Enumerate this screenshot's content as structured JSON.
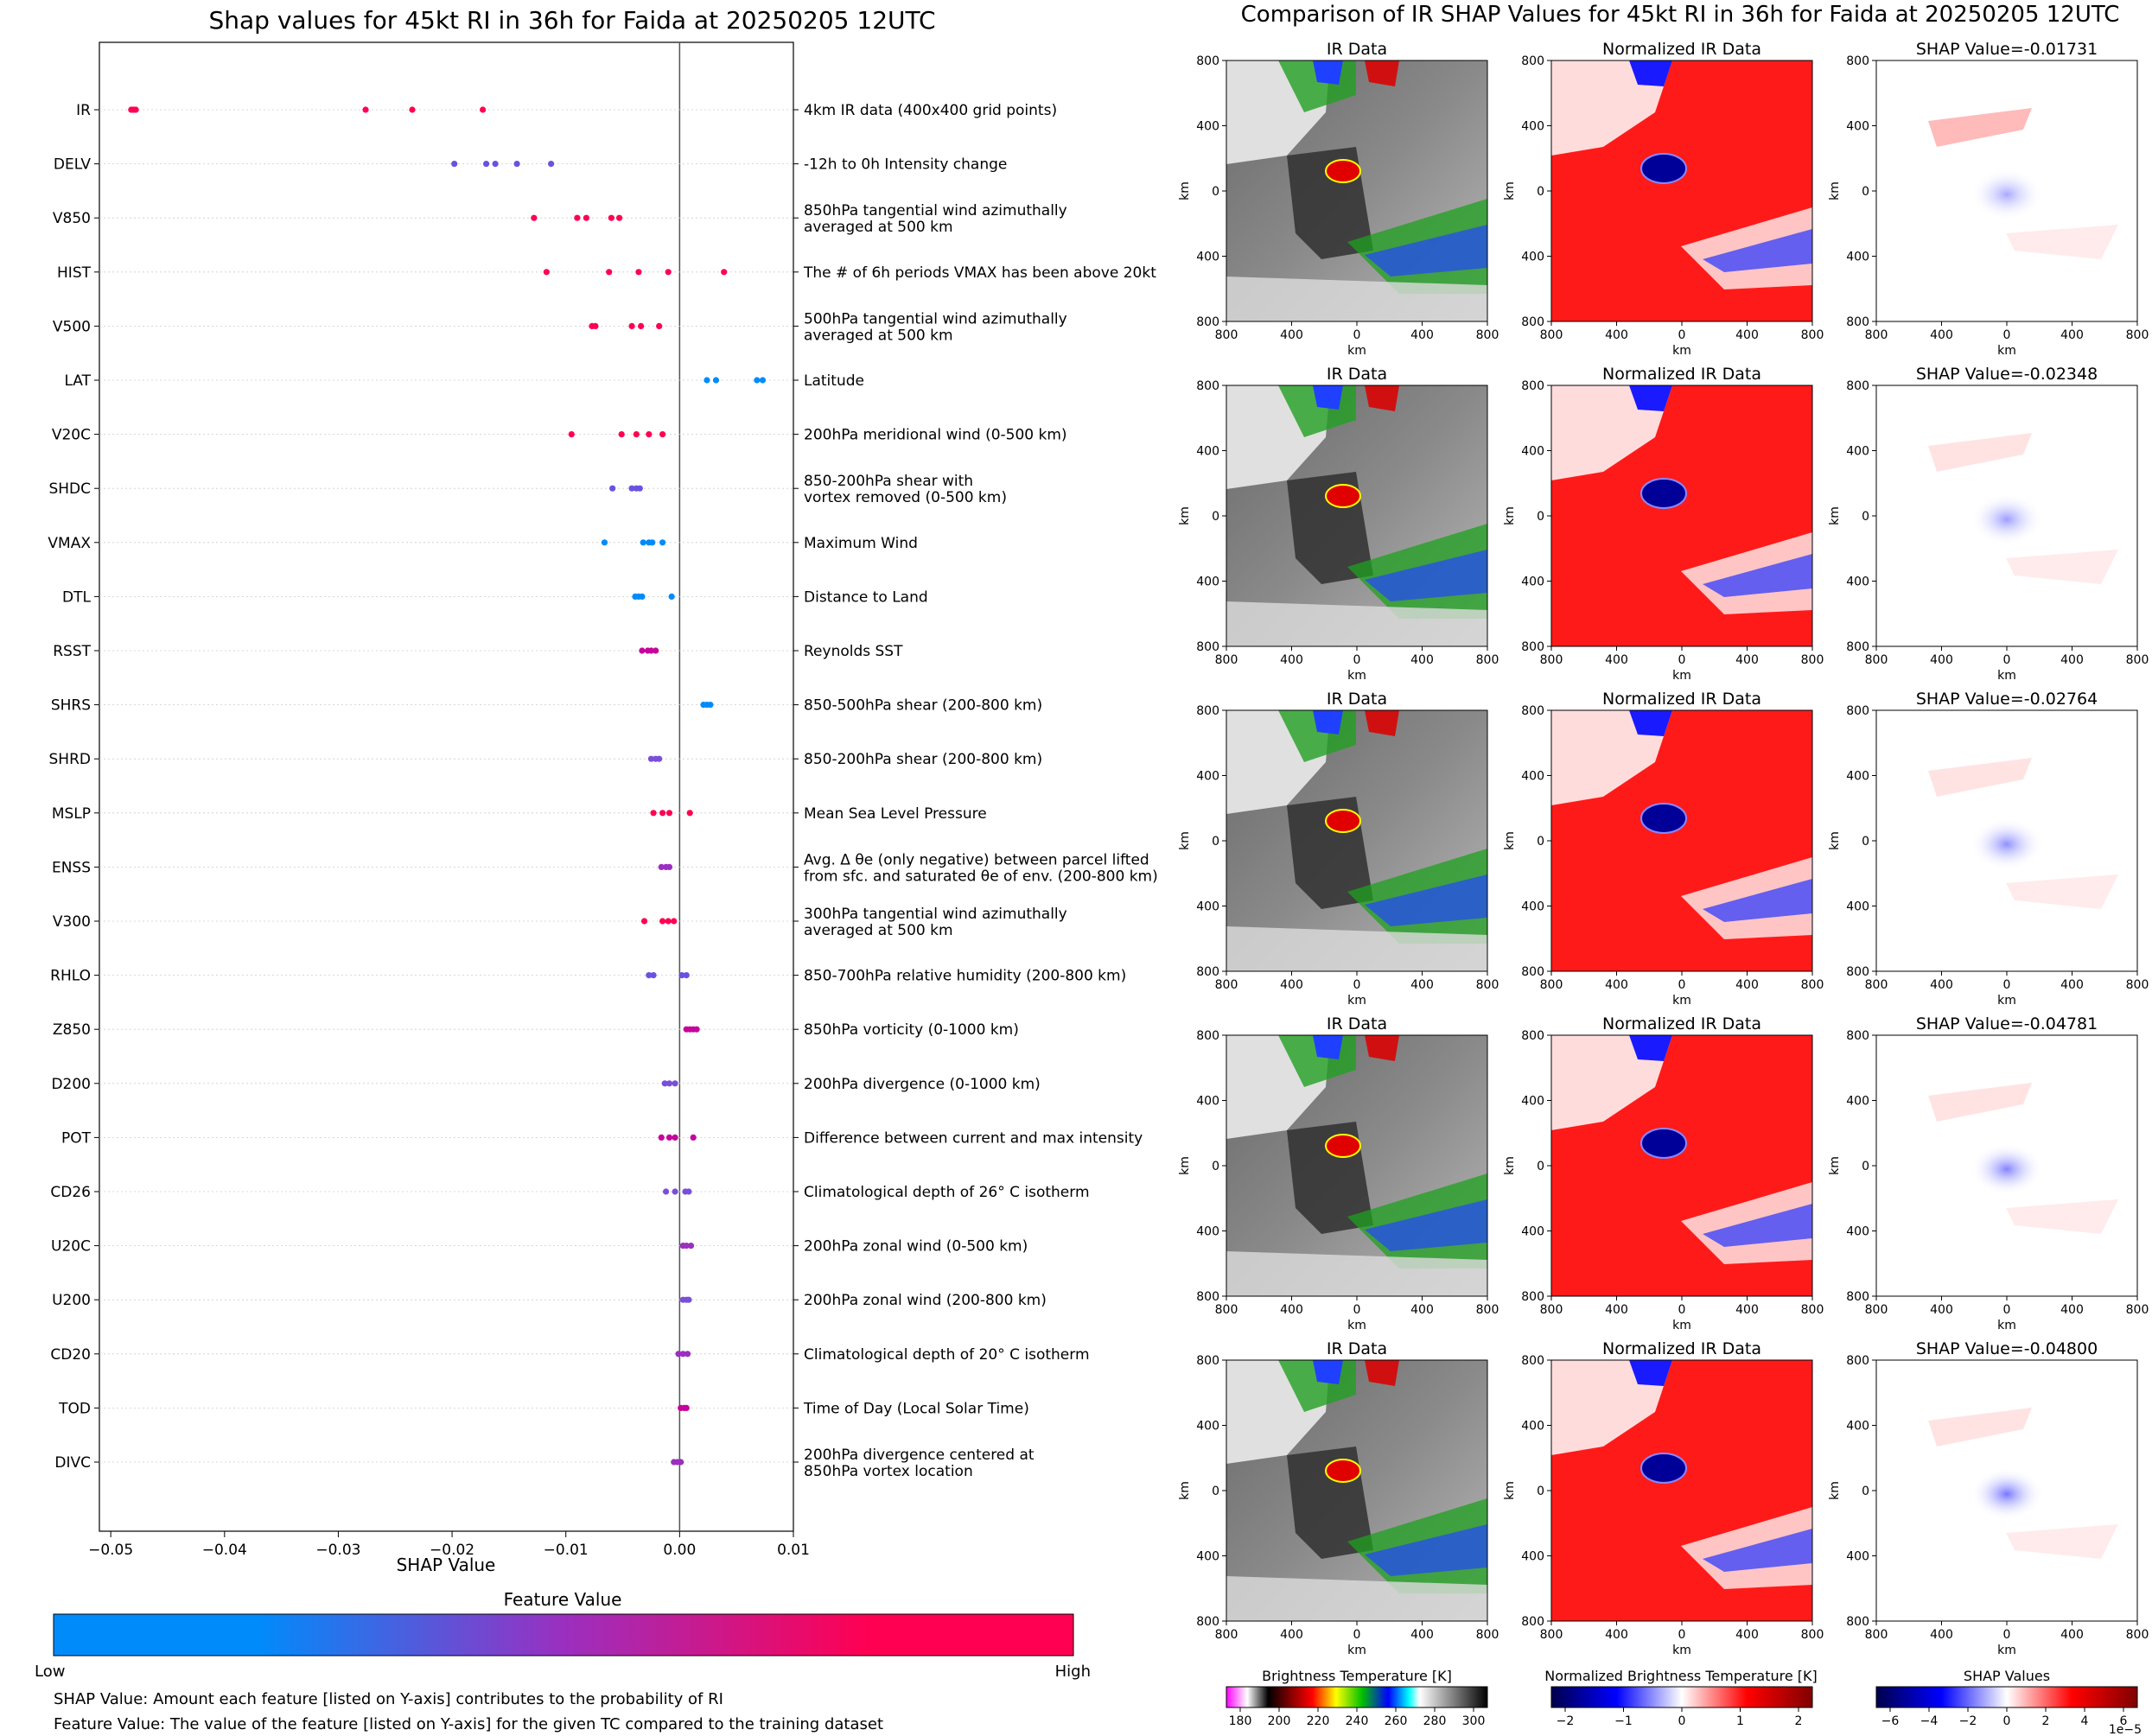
{
  "left_panel": {
    "title": "Shap values for 45kt RI in 36h for Faida at 20250205 12UTC",
    "xlabel": "SHAP Value",
    "colorbar": {
      "title": "Feature Value",
      "low": "Low",
      "high": "High",
      "low_color": "#008bfb",
      "high_color": "#ff0052"
    },
    "footnote_1": "SHAP Value: Amount each feature [listed on Y-axis] contributes to the probability of RI",
    "footnote_2": "Feature Value: The value of the feature [listed on Y-axis] for the given TC compared to the training dataset"
  },
  "chart_data": [
    {
      "type": "scatter",
      "xlabel": "SHAP Value",
      "xlim": [
        -0.051,
        0.01
      ],
      "xticks": [
        -0.05,
        -0.04,
        -0.03,
        -0.02,
        -0.01,
        0.0,
        0.01
      ],
      "xtick_labels": [
        "−0.05",
        "−0.04",
        "−0.03",
        "−0.02",
        "−0.01",
        "0.00",
        "0.01"
      ],
      "features": [
        {
          "name": "IR",
          "desc": [
            "4km IR data (400x400 grid points)"
          ],
          "points": [
            -0.0482,
            -0.048,
            -0.0478,
            -0.0276,
            -0.0235,
            -0.0173
          ],
          "colors": [
            "#ff0052",
            "#ff0052",
            "#ff0052",
            "#ff0052",
            "#ff0052",
            "#ff0052"
          ]
        },
        {
          "name": "DELV",
          "desc": [
            "-12h to 0h Intensity change"
          ],
          "points": [
            -0.0198,
            -0.017,
            -0.0162,
            -0.0143,
            -0.0113
          ],
          "colors": [
            "#6a52e0",
            "#6a52e0",
            "#6a52e0",
            "#6a52e0",
            "#6a52e0"
          ]
        },
        {
          "name": "V850",
          "desc": [
            "850hPa tangential wind azimuthally",
            "averaged at 500 km"
          ],
          "points": [
            -0.0128,
            -0.009,
            -0.0082,
            -0.006,
            -0.0053
          ],
          "colors": [
            "#ff0052",
            "#ff0052",
            "#ff0052",
            "#ff0052",
            "#ff0052"
          ]
        },
        {
          "name": "HIST",
          "desc": [
            "The # of 6h periods VMAX has been above 20kt"
          ],
          "points": [
            -0.0117,
            -0.0062,
            -0.0036,
            -0.001,
            0.0039
          ],
          "colors": [
            "#ff0052",
            "#ff0052",
            "#ff0052",
            "#ff0052",
            "#ff0052"
          ]
        },
        {
          "name": "V500",
          "desc": [
            "500hPa tangential wind azimuthally",
            "averaged at 500 km"
          ],
          "points": [
            -0.0077,
            -0.0074,
            -0.0042,
            -0.0034,
            -0.0018
          ],
          "colors": [
            "#ff0052",
            "#ff0052",
            "#ff0052",
            "#ff0052",
            "#ff0052"
          ]
        },
        {
          "name": "LAT",
          "desc": [
            "Latitude"
          ],
          "points": [
            0.0024,
            0.0032,
            0.0068,
            0.0073
          ],
          "colors": [
            "#008bfb",
            "#008bfb",
            "#008bfb",
            "#008bfb"
          ]
        },
        {
          "name": "V20C",
          "desc": [
            "200hPa meridional wind (0-500 km)"
          ],
          "points": [
            -0.0095,
            -0.0051,
            -0.0038,
            -0.0027,
            -0.0015
          ],
          "colors": [
            "#ff0052",
            "#ff0052",
            "#ff0052",
            "#ff0052",
            "#ff0052"
          ]
        },
        {
          "name": "SHDC",
          "desc": [
            "850-200hPa shear with",
            "vortex removed (0-500 km)"
          ],
          "points": [
            -0.0059,
            -0.0042,
            -0.0038,
            -0.0035
          ],
          "colors": [
            "#6a52e0",
            "#6a52e0",
            "#6a52e0",
            "#6a52e0"
          ]
        },
        {
          "name": "VMAX",
          "desc": [
            "Maximum Wind"
          ],
          "points": [
            -0.0066,
            -0.0032,
            -0.0027,
            -0.0024,
            -0.0015
          ],
          "colors": [
            "#008bfb",
            "#008bfb",
            "#008bfb",
            "#008bfb",
            "#008bfb"
          ]
        },
        {
          "name": "DTL",
          "desc": [
            "Distance to Land"
          ],
          "points": [
            -0.0039,
            -0.0036,
            -0.0033,
            -0.0007
          ],
          "colors": [
            "#008bfb",
            "#008bfb",
            "#008bfb",
            "#008bfb"
          ]
        },
        {
          "name": "RSST",
          "desc": [
            "Reynolds SST"
          ],
          "points": [
            -0.0033,
            -0.0028,
            -0.0025,
            -0.0021
          ],
          "colors": [
            "#c6049b",
            "#c6049b",
            "#c6049b",
            "#c6049b"
          ]
        },
        {
          "name": "SHRS",
          "desc": [
            "850-500hPa shear (200-800 km)"
          ],
          "points": [
            0.0021,
            0.0024,
            0.0027
          ],
          "colors": [
            "#008bfb",
            "#008bfb",
            "#008bfb"
          ]
        },
        {
          "name": "SHRD",
          "desc": [
            "850-200hPa shear (200-800 km)"
          ],
          "points": [
            -0.0025,
            -0.0021,
            -0.0018
          ],
          "colors": [
            "#7a4fd8",
            "#7a4fd8",
            "#7a4fd8"
          ]
        },
        {
          "name": "MSLP",
          "desc": [
            "Mean Sea Level Pressure"
          ],
          "points": [
            -0.0023,
            -0.0015,
            -0.0009,
            0.0009
          ],
          "colors": [
            "#ff0052",
            "#ff0052",
            "#ff0052",
            "#ff0052"
          ]
        },
        {
          "name": "ENSS",
          "desc": [
            "Avg. Δ θe (only negative) between parcel lifted",
            "from sfc. and saturated θe of env. (200-800 km)"
          ],
          "points": [
            -0.0016,
            -0.0012,
            -0.0009
          ],
          "colors": [
            "#9b2fc0",
            "#9b2fc0",
            "#9b2fc0"
          ]
        },
        {
          "name": "V300",
          "desc": [
            "300hPa tangential wind azimuthally",
            "averaged at 500 km"
          ],
          "points": [
            -0.0031,
            -0.0015,
            -0.001,
            -0.0005
          ],
          "colors": [
            "#ff0052",
            "#ff0052",
            "#ff0052",
            "#ff0052"
          ]
        },
        {
          "name": "RHLO",
          "desc": [
            "850-700hPa relative humidity (200-800 km)"
          ],
          "points": [
            -0.0027,
            -0.0023,
            0.0002,
            0.0006
          ],
          "colors": [
            "#6a52e0",
            "#6a52e0",
            "#6a52e0",
            "#6a52e0"
          ]
        },
        {
          "name": "Z850",
          "desc": [
            "850hPa vorticity (0-1000 km)"
          ],
          "points": [
            0.0006,
            0.0009,
            0.0012,
            0.0015
          ],
          "colors": [
            "#c6049b",
            "#c6049b",
            "#c6049b",
            "#c6049b"
          ]
        },
        {
          "name": "D200",
          "desc": [
            "200hPa divergence (0-1000 km)"
          ],
          "points": [
            -0.0013,
            -0.0009,
            -0.0004
          ],
          "colors": [
            "#7a4fd8",
            "#7a4fd8",
            "#7a4fd8"
          ]
        },
        {
          "name": "POT",
          "desc": [
            "Difference between current and max intensity"
          ],
          "points": [
            -0.0016,
            -0.0009,
            -0.0004,
            0.0012
          ],
          "colors": [
            "#c6049b",
            "#c6049b",
            "#c6049b",
            "#c6049b"
          ]
        },
        {
          "name": "CD26",
          "desc": [
            "Climatological depth of 26° C isotherm"
          ],
          "points": [
            -0.0012,
            -0.0004,
            0.0005,
            0.0008
          ],
          "colors": [
            "#7a4fd8",
            "#7a4fd8",
            "#7a4fd8",
            "#7a4fd8"
          ]
        },
        {
          "name": "U20C",
          "desc": [
            "200hPa zonal wind (0-500 km)"
          ],
          "points": [
            0.0003,
            0.0006,
            0.001
          ],
          "colors": [
            "#9b2fc0",
            "#9b2fc0",
            "#9b2fc0"
          ]
        },
        {
          "name": "U200",
          "desc": [
            "200hPa zonal wind (200-800 km)"
          ],
          "points": [
            0.0003,
            0.0006,
            0.0008
          ],
          "colors": [
            "#7a4fd8",
            "#7a4fd8",
            "#7a4fd8"
          ]
        },
        {
          "name": "CD20",
          "desc": [
            "Climatological depth of 20° C isotherm"
          ],
          "points": [
            -0.0001,
            0.0003,
            0.0007
          ],
          "colors": [
            "#9b2fc0",
            "#9b2fc0",
            "#9b2fc0"
          ]
        },
        {
          "name": "TOD",
          "desc": [
            "Time of Day (Local Solar Time)"
          ],
          "points": [
            0.0001,
            0.0004,
            0.0006
          ],
          "colors": [
            "#c6049b",
            "#c6049b",
            "#c6049b"
          ]
        },
        {
          "name": "DIVC",
          "desc": [
            "200hPa divergence centered at",
            "850hPa vortex location"
          ],
          "points": [
            -0.0005,
            -0.0002,
            0.0001
          ],
          "colors": [
            "#9b2fc0",
            "#9b2fc0",
            "#9b2fc0"
          ]
        }
      ]
    },
    {
      "type": "heatmap",
      "title": "Comparison of IR SHAP Values for 45kt RI in 36h for Faida at 20250205 12UTC",
      "column_titles": [
        "IR Data",
        "Normalized IR Data"
      ],
      "shap_titles": [
        "SHAP Value=-0.01731",
        "SHAP Value=-0.02348",
        "SHAP Value=-0.02764",
        "SHAP Value=-0.04781",
        "SHAP Value=-0.04800"
      ],
      "axis_label": "km",
      "tick_labels": [
        "800",
        "400",
        "0",
        "400",
        "800"
      ],
      "colorbars": [
        {
          "title": "Brightness Temperature [K]",
          "ticks": [
            "180",
            "200",
            "220",
            "240",
            "260",
            "280",
            "300"
          ],
          "offset": ""
        },
        {
          "title": "Normalized Brightness Temperature [K]",
          "ticks": [
            "−2",
            "−1",
            "0",
            "1",
            "2"
          ],
          "offset": ""
        },
        {
          "title": "SHAP Values",
          "ticks": [
            "−6",
            "−4",
            "−2",
            "0",
            "2",
            "4",
            "6"
          ],
          "offset": "1e−5"
        }
      ]
    }
  ]
}
